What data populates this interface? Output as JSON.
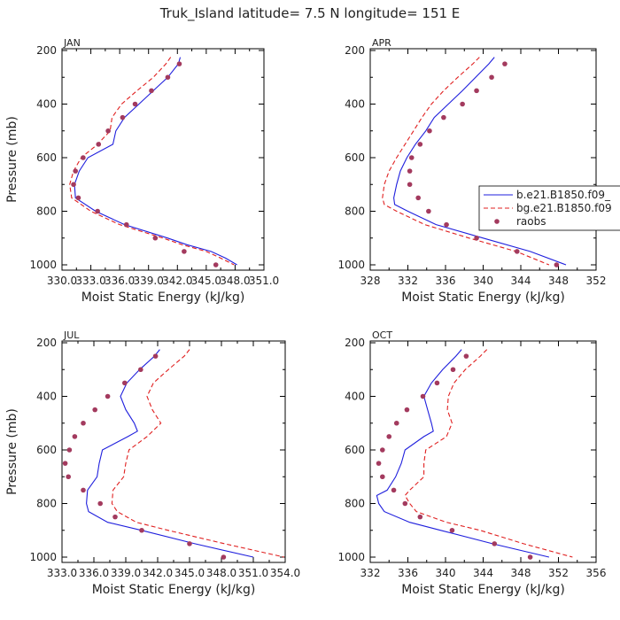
{
  "title": "Truk_Island   latitude= 7.5 N longitude= 151 E",
  "colors": {
    "model1": "#1f1fdd",
    "model2": "#e02020",
    "obs": "#a33a5e",
    "axis": "#000000",
    "text": "#222222"
  },
  "legend": {
    "items": [
      {
        "label": "b.e21.B1850.f09_",
        "style": "solid",
        "color": "#1f1fdd"
      },
      {
        "label": "bg.e21.B1850.f09",
        "style": "dashed",
        "color": "#e02020"
      },
      {
        "label": "raobs",
        "style": "dot",
        "color": "#a33a5e"
      }
    ]
  },
  "chart_data": [
    {
      "type": "line",
      "month": "JAN",
      "xlabel": "Moist Static Energy (kJ/kg)",
      "ylabel": "Pressure (mb)",
      "xlim": [
        330.0,
        351.0
      ],
      "ylim": [
        1000,
        200
      ],
      "xticks": [
        330.0,
        333.0,
        336.0,
        339.0,
        342.0,
        345.0,
        348.0,
        351.0
      ],
      "xtick_labels": [
        "330.0",
        "333.0",
        "336.0",
        "339.0",
        "342.0",
        "345.0",
        "348.0",
        "351.0"
      ],
      "yticks": [
        200,
        400,
        600,
        800,
        1000
      ],
      "ytick_labels": [
        "200",
        "400",
        "600",
        "800",
        "1000"
      ],
      "series": [
        {
          "name": "b.e21.B1850.f09_",
          "style": "solid",
          "pressure": [
            225,
            250,
            300,
            350,
            400,
            450,
            500,
            550,
            600,
            650,
            700,
            750,
            800,
            850,
            900,
            925,
            950,
            975,
            1000
          ],
          "values": [
            342.3,
            342.1,
            341.0,
            339.5,
            338.0,
            336.5,
            335.6,
            335.3,
            332.7,
            331.8,
            331.3,
            331.4,
            333.5,
            336.5,
            341.0,
            343.0,
            345.5,
            347.0,
            348.2
          ]
        },
        {
          "name": "bg.e21.B1850.f09",
          "style": "dashed",
          "pressure": [
            225,
            250,
            300,
            350,
            400,
            450,
            500,
            550,
            600,
            650,
            700,
            750,
            800,
            850,
            900,
            925,
            950,
            975,
            1000
          ],
          "values": [
            341.3,
            340.8,
            339.5,
            337.8,
            336.2,
            335.2,
            335.0,
            333.7,
            332.0,
            331.2,
            330.8,
            331.0,
            333.0,
            336.0,
            340.5,
            342.5,
            345.0,
            346.5,
            347.9
          ]
        },
        {
          "name": "raobs",
          "style": "dot",
          "pressure": [
            250,
            300,
            350,
            400,
            450,
            500,
            550,
            600,
            650,
            700,
            750,
            800,
            850,
            900,
            950,
            1000
          ],
          "values": [
            342.2,
            341.0,
            339.3,
            337.6,
            336.3,
            334.8,
            333.8,
            332.2,
            331.4,
            331.2,
            331.7,
            333.7,
            336.7,
            339.7,
            342.7,
            346.0
          ]
        }
      ]
    },
    {
      "type": "line",
      "month": "APR",
      "xlabel": "Moist Static Energy (kJ/kg)",
      "ylabel": "Pressure (mb)",
      "xlim": [
        328,
        352
      ],
      "ylim": [
        1000,
        200
      ],
      "xticks": [
        328,
        332,
        336,
        340,
        344,
        348,
        352
      ],
      "xtick_labels": [
        "328",
        "332",
        "336",
        "340",
        "344",
        "348",
        "352"
      ],
      "yticks": [
        200,
        400,
        600,
        800,
        1000
      ],
      "ytick_labels": [
        "200",
        "400",
        "600",
        "800",
        "1000"
      ],
      "series": [
        {
          "name": "b.e21.B1850.f09_",
          "style": "solid",
          "pressure": [
            225,
            250,
            300,
            350,
            400,
            450,
            500,
            550,
            600,
            650,
            700,
            750,
            775,
            800,
            850,
            900,
            950,
            1000
          ],
          "values": [
            341.2,
            340.6,
            339.2,
            337.8,
            336.3,
            334.8,
            333.9,
            332.8,
            331.9,
            331.2,
            330.8,
            330.5,
            330.6,
            332.0,
            335.0,
            340.0,
            345.0,
            348.8
          ]
        },
        {
          "name": "bg.e21.B1850.f09",
          "style": "dashed",
          "pressure": [
            225,
            250,
            300,
            350,
            400,
            450,
            500,
            550,
            600,
            650,
            700,
            750,
            775,
            800,
            850,
            900,
            950,
            1000
          ],
          "values": [
            339.6,
            338.9,
            337.3,
            335.8,
            334.5,
            333.5,
            332.6,
            331.7,
            330.8,
            330.0,
            329.5,
            329.3,
            329.5,
            330.8,
            333.8,
            338.5,
            343.5,
            347.0
          ]
        },
        {
          "name": "raobs",
          "style": "dot",
          "pressure": [
            250,
            300,
            350,
            400,
            450,
            500,
            550,
            600,
            650,
            700,
            750,
            800,
            850,
            900,
            950,
            1000
          ],
          "values": [
            342.3,
            340.9,
            339.3,
            337.8,
            335.8,
            334.3,
            333.3,
            332.4,
            332.2,
            332.2,
            333.1,
            334.2,
            336.1,
            339.3,
            343.6,
            347.8
          ]
        }
      ]
    },
    {
      "type": "line",
      "month": "JUL",
      "xlabel": "Moist Static Energy (kJ/kg)",
      "ylabel": "Pressure (mb)",
      "xlim": [
        333.0,
        354.0
      ],
      "ylim": [
        1000,
        200
      ],
      "xticks": [
        333.0,
        336.0,
        339.0,
        342.0,
        345.0,
        348.0,
        351.0,
        354.0
      ],
      "xtick_labels": [
        "333.0",
        "336.0",
        "339.0",
        "342.0",
        "345.0",
        "348.0",
        "351.0",
        "354.0"
      ],
      "yticks": [
        200,
        400,
        600,
        800,
        1000
      ],
      "ytick_labels": [
        "200",
        "400",
        "600",
        "800",
        "1000"
      ],
      "series": [
        {
          "name": "b.e21.B1850.f09_",
          "style": "solid",
          "pressure": [
            225,
            250,
            300,
            350,
            400,
            450,
            500,
            530,
            550,
            600,
            650,
            700,
            750,
            800,
            830,
            870,
            900,
            950,
            1000
          ],
          "values": [
            342.2,
            341.7,
            340.3,
            339.1,
            338.5,
            339.0,
            339.8,
            340.1,
            339.2,
            336.8,
            336.5,
            336.3,
            335.4,
            335.3,
            335.5,
            337.3,
            340.5,
            345.5,
            351.0
          ]
        },
        {
          "name": "bg.e21.B1850.f09",
          "style": "dashed",
          "pressure": [
            225,
            250,
            300,
            350,
            400,
            450,
            500,
            550,
            600,
            650,
            700,
            750,
            800,
            830,
            870,
            900,
            950,
            1000
          ],
          "values": [
            345.0,
            344.5,
            343.0,
            341.6,
            341.0,
            341.5,
            342.3,
            341.0,
            339.3,
            339.0,
            338.8,
            337.8,
            337.7,
            338.2,
            340.0,
            343.0,
            348.3,
            353.9
          ]
        },
        {
          "name": "raobs",
          "style": "dot",
          "pressure": [
            250,
            300,
            350,
            400,
            450,
            500,
            550,
            600,
            650,
            700,
            750,
            800,
            850,
            900,
            950,
            1000
          ],
          "values": [
            341.8,
            340.4,
            338.9,
            337.3,
            336.1,
            335.0,
            334.2,
            333.7,
            333.3,
            333.6,
            335.0,
            336.6,
            338.0,
            340.5,
            345.0,
            348.2
          ]
        }
      ]
    },
    {
      "type": "line",
      "month": "OCT",
      "xlabel": "Moist Static Energy (kJ/kg)",
      "ylabel": "Pressure (mb)",
      "xlim": [
        332,
        356
      ],
      "ylim": [
        1000,
        200
      ],
      "xticks": [
        332,
        336,
        340,
        344,
        348,
        352,
        356
      ],
      "xtick_labels": [
        "332",
        "336",
        "340",
        "344",
        "348",
        "352",
        "356"
      ],
      "yticks": [
        200,
        400,
        600,
        800,
        1000
      ],
      "ytick_labels": [
        "200",
        "400",
        "600",
        "800",
        "1000"
      ],
      "series": [
        {
          "name": "b.e21.B1850.f09_",
          "style": "solid",
          "pressure": [
            225,
            250,
            300,
            350,
            400,
            450,
            500,
            530,
            550,
            600,
            650,
            700,
            750,
            770,
            800,
            830,
            870,
            900,
            950,
            1000
          ],
          "values": [
            341.7,
            341.1,
            339.7,
            338.5,
            337.7,
            338.1,
            338.5,
            338.7,
            337.7,
            335.7,
            335.3,
            334.7,
            333.8,
            332.7,
            332.9,
            333.5,
            336.2,
            339.5,
            345.0,
            351.0
          ]
        },
        {
          "name": "bg.e21.B1850.f09",
          "style": "dashed",
          "pressure": [
            225,
            250,
            300,
            350,
            400,
            450,
            500,
            550,
            600,
            650,
            700,
            750,
            770,
            800,
            830,
            870,
            900,
            950,
            1000
          ],
          "values": [
            344.4,
            343.7,
            342.1,
            340.9,
            340.3,
            340.2,
            340.7,
            340.1,
            337.9,
            337.7,
            337.7,
            336.2,
            335.7,
            336.2,
            336.9,
            340.1,
            343.7,
            348.3,
            353.5
          ]
        },
        {
          "name": "raobs",
          "style": "dot",
          "pressure": [
            250,
            300,
            350,
            400,
            450,
            500,
            550,
            600,
            650,
            700,
            750,
            800,
            850,
            900,
            950,
            1000
          ],
          "values": [
            342.2,
            340.8,
            339.1,
            337.6,
            335.9,
            334.8,
            334.0,
            333.3,
            332.9,
            333.3,
            334.5,
            335.7,
            337.3,
            340.7,
            345.2,
            349.0
          ]
        }
      ]
    }
  ]
}
